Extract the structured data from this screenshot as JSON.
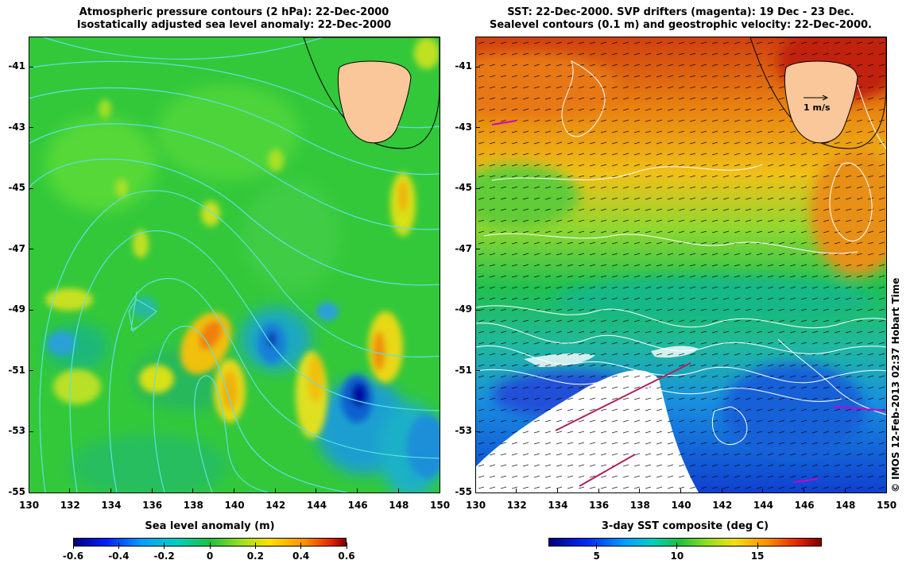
{
  "left_panel": {
    "title_line1": "Atmospheric pressure contours (2 hPa): 22-Dec-2000",
    "title_line2": "Isostatically adjusted sea level anomaly: 22-Dec-2000",
    "colorbar_title": "Sea level anomaly (m)",
    "colorbar_ticks": [
      "-0.6",
      "-0.4",
      "-0.2",
      "0",
      "0.2",
      "0.4",
      "0.6"
    ],
    "colorbar_range": [
      -0.6,
      0.6
    ]
  },
  "right_panel": {
    "title_line1": "SST: 22-Dec-2000. SVP drifters (magenta): 19 Dec - 23 Dec.",
    "title_line2": "Sealevel contours (0.1 m) and geostrophic velocity: 22-Dec-2000.",
    "colorbar_title": "3-day SST composite (deg C)",
    "colorbar_ticks": [
      "5",
      "10",
      "15"
    ],
    "colorbar_range": [
      2,
      19
    ],
    "scale_arrow_label": "1 m/s"
  },
  "axes": {
    "x_ticks": [
      "130",
      "132",
      "134",
      "136",
      "138",
      "140",
      "142",
      "144",
      "146",
      "148",
      "150"
    ],
    "y_ticks": [
      "-41",
      "-43",
      "-45",
      "-47",
      "-49",
      "-51",
      "-53",
      "-55"
    ],
    "lon_range": [
      130,
      150
    ],
    "lat_range": [
      -55,
      -40
    ]
  },
  "credit": "© IMOS 12-Feb-2013 02:37 Hobart Time",
  "colors": {
    "land": "#f9c79a",
    "pressure_contours": "#5fe0e0",
    "sealevel_contours": "#ffffff",
    "drifters": "#cc00cc"
  }
}
